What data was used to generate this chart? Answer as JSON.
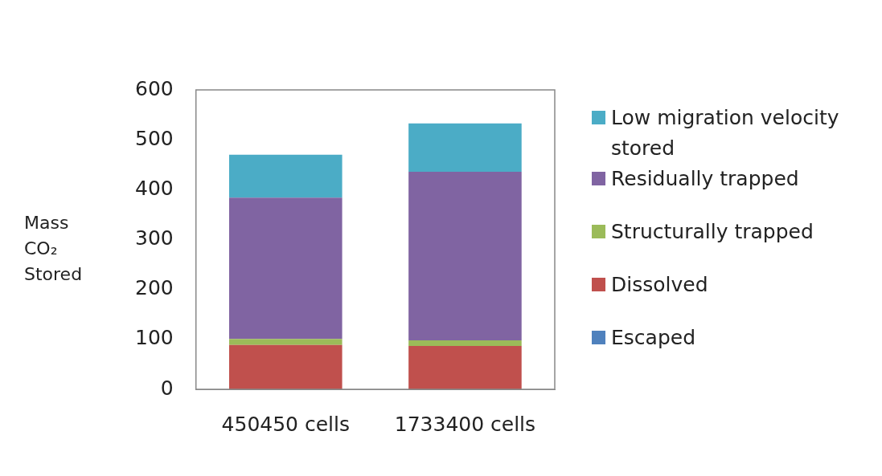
{
  "chart_data": {
    "type": "bar",
    "ylabel": "Mass CO₂ Stored",
    "categories": [
      "450450 cells",
      "1733400 cells"
    ],
    "stacked": true,
    "series": [
      {
        "name": "Escaped",
        "color": "#4f81bd",
        "values": [
          0,
          0
        ]
      },
      {
        "name": "Dissolved",
        "color": "#c0504d",
        "values": [
          89,
          87
        ]
      },
      {
        "name": "Structurally trapped",
        "color": "#9bbb59",
        "values": [
          12,
          11
        ]
      },
      {
        "name": "Residually trapped",
        "color": "#8064a2",
        "values": [
          283,
          338
        ]
      },
      {
        "name": "Low migration velocity stored",
        "color": "#4bacc6",
        "values": [
          86,
          97
        ]
      }
    ],
    "ylim": [
      0,
      600
    ],
    "yticks": [
      0,
      100,
      200,
      300,
      400,
      500,
      600
    ],
    "grid": false,
    "legend": "right"
  }
}
